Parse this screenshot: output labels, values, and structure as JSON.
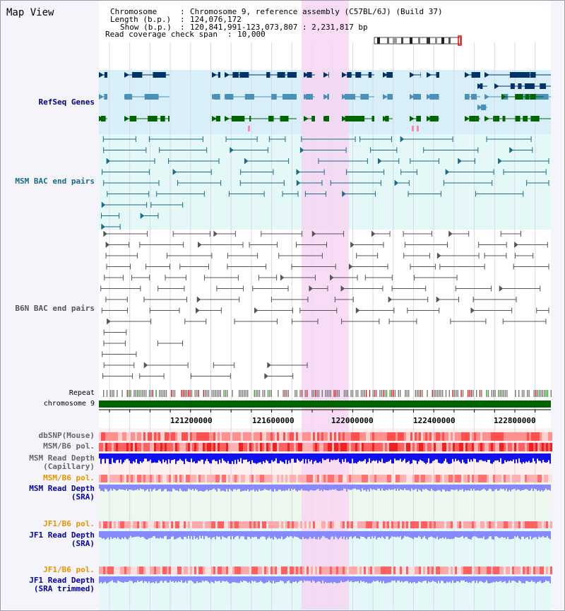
{
  "view": {
    "title": "Map View",
    "chromosome_label": "Chromosome",
    "chromosome_value": "Chromosome 9, reference assembly (C57BL/6J) (Build 37)",
    "length_label": "Length (b.p.)",
    "length_value": "124,076,172",
    "show_label": "Show (b.p.)",
    "show_value": "120,841,991-123,073,807 : 2,231,817 bp",
    "coverage_label": "Read coverage check span",
    "coverage_value": "10,000"
  },
  "tracks": {
    "refseq": "RefSeq Genes",
    "msm_bac": "MSM BAC end pairs",
    "b6n_bac": "B6N BAC end pairs",
    "repeat": "Repeat",
    "chromosome": "chromosome 9",
    "dbsnp": "dbSNP(Mouse)",
    "msm_pol": "MSM/B6 pol.",
    "msm_depth_cap_1": "MSM Read Depth",
    "msm_depth_cap_2": "(Capillary)",
    "msm_pol2": "MSM/B6 pol.",
    "msm_depth_sra_1": "MSM Read Depth",
    "msm_depth_sra_2": "(SRA)",
    "jf1_pol": "JF1/B6 pol.",
    "jf1_depth_sra_1": "JF1 Read Depth",
    "jf1_depth_sra_2": "(SRA)",
    "jf1_pol2": "JF1/B6 pol.",
    "jf1_depth_trim_1": "JF1 Read Depth",
    "jf1_depth_trim_2": "(SRA trimmed)"
  },
  "axis": {
    "ticks": [
      "121200000",
      "121600000",
      "122000000",
      "122400000",
      "122800000"
    ]
  },
  "colors": {
    "refseq_dark": "#003366",
    "refseq_mid": "#4a90b8",
    "refseq_green": "#006400",
    "msm_bac": "#1a6a8a",
    "b6n_bac": "#555555",
    "highlight": "#f7d6f3",
    "chrom_bar": "#006400",
    "cap_depth": "#1111ee",
    "sra_depth": "#8888ff"
  }
}
